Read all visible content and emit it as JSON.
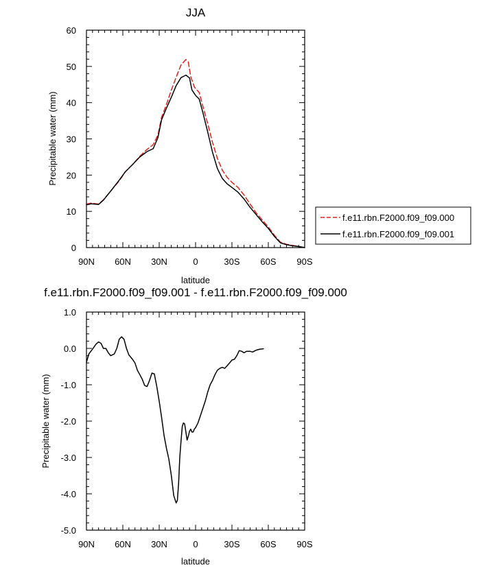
{
  "chart_data": [
    {
      "type": "line",
      "title": "JJA",
      "xlabel": "latitude",
      "ylabel": "Precipitable water (mm)",
      "xlim": [
        90,
        -90
      ],
      "ylim": [
        0,
        60
      ],
      "x_ticks": [
        {
          "value": 90,
          "label": "90N"
        },
        {
          "value": 60,
          "label": "60N"
        },
        {
          "value": 30,
          "label": "30N"
        },
        {
          "value": 0,
          "label": "0"
        },
        {
          "value": -30,
          "label": "30S"
        },
        {
          "value": -60,
          "label": "60S"
        },
        {
          "value": -90,
          "label": "90S"
        }
      ],
      "y_ticks": [
        {
          "value": 0,
          "label": "0"
        },
        {
          "value": 10,
          "label": "10"
        },
        {
          "value": 20,
          "label": "20"
        },
        {
          "value": 30,
          "label": "30"
        },
        {
          "value": 40,
          "label": "40"
        },
        {
          "value": 50,
          "label": "50"
        },
        {
          "value": 60,
          "label": "60"
        }
      ],
      "legend_position": "right",
      "series": [
        {
          "name": "f.e11.rbn.F2000.f09_f09.000",
          "color": "#e0201b",
          "dash": "dashed",
          "points": [
            [
              90,
              12.0
            ],
            [
              86,
              12.3
            ],
            [
              80,
              12.0
            ],
            [
              76,
              13.2
            ],
            [
              70,
              15.6
            ],
            [
              63,
              18.4
            ],
            [
              58,
              20.9
            ],
            [
              52,
              22.9
            ],
            [
              46,
              25.2
            ],
            [
              40,
              27.1
            ],
            [
              35,
              28.4
            ],
            [
              31,
              31.1
            ],
            [
              28,
              36.0
            ],
            [
              24,
              39.5
            ],
            [
              20,
              43.5
            ],
            [
              16,
              47.0
            ],
            [
              12,
              50.4
            ],
            [
              8,
              51.9
            ],
            [
              6,
              51.2
            ],
            [
              4,
              47.2
            ],
            [
              1,
              44.3
            ],
            [
              -3,
              42.8
            ],
            [
              -6,
              39.0
            ],
            [
              -10,
              34.2
            ],
            [
              -14,
              29.0
            ],
            [
              -18,
              24.6
            ],
            [
              -22,
              21.4
            ],
            [
              -26,
              19.4
            ],
            [
              -30,
              18.0
            ],
            [
              -35,
              16.6
            ],
            [
              -40,
              14.5
            ],
            [
              -45,
              12.0
            ],
            [
              -50,
              9.6
            ],
            [
              -55,
              7.6
            ],
            [
              -60,
              5.7
            ],
            [
              -65,
              3.4
            ],
            [
              -70,
              1.5
            ],
            [
              -75,
              0.9
            ],
            [
              -80,
              0.6
            ],
            [
              -85,
              0.3
            ],
            [
              -90,
              0.0
            ]
          ]
        },
        {
          "name": "f.e11.rbn.F2000.f09_f09.001",
          "color": "#000000",
          "dash": "solid",
          "points": [
            [
              90,
              11.8
            ],
            [
              86,
              12.1
            ],
            [
              80,
              11.9
            ],
            [
              76,
              13.1
            ],
            [
              70,
              15.6
            ],
            [
              63,
              18.6
            ],
            [
              58,
              20.9
            ],
            [
              52,
              22.9
            ],
            [
              46,
              25.0
            ],
            [
              40,
              26.5
            ],
            [
              35,
              27.3
            ],
            [
              31,
              30.4
            ],
            [
              28,
              35.3
            ],
            [
              24,
              38.5
            ],
            [
              20,
              41.5
            ],
            [
              16,
              44.7
            ],
            [
              12,
              46.9
            ],
            [
              8,
              47.6
            ],
            [
              5,
              46.8
            ],
            [
              3,
              43.5
            ],
            [
              0,
              42.0
            ],
            [
              -3,
              41.0
            ],
            [
              -6,
              37.3
            ],
            [
              -10,
              31.9
            ],
            [
              -14,
              26.3
            ],
            [
              -18,
              21.8
            ],
            [
              -22,
              19.1
            ],
            [
              -26,
              17.6
            ],
            [
              -30,
              16.6
            ],
            [
              -35,
              15.3
            ],
            [
              -40,
              13.4
            ],
            [
              -45,
              11.1
            ],
            [
              -50,
              9.1
            ],
            [
              -55,
              7.1
            ],
            [
              -60,
              5.3
            ],
            [
              -65,
              3.1
            ],
            [
              -70,
              1.3
            ],
            [
              -75,
              0.8
            ],
            [
              -80,
              0.5
            ],
            [
              -85,
              0.3
            ],
            [
              -90,
              0.0
            ]
          ]
        }
      ]
    },
    {
      "type": "line",
      "title": "f.e11.rbn.F2000.f09_f09.001 - f.e11.rbn.F2000.f09_f09.000",
      "xlabel": "latitude",
      "ylabel": "Precipitable water (mm)",
      "xlim": [
        90,
        -90
      ],
      "ylim": [
        -5,
        1
      ],
      "x_ticks": [
        {
          "value": 90,
          "label": "90N"
        },
        {
          "value": 60,
          "label": "60N"
        },
        {
          "value": 30,
          "label": "30N"
        },
        {
          "value": 0,
          "label": "0"
        },
        {
          "value": -30,
          "label": "30S"
        },
        {
          "value": -60,
          "label": "60S"
        },
        {
          "value": -90,
          "label": "90S"
        }
      ],
      "y_ticks": [
        {
          "value": 1,
          "label": "1.0"
        },
        {
          "value": 0,
          "label": "0.0"
        },
        {
          "value": -1,
          "label": "-1.0"
        },
        {
          "value": -2,
          "label": "-2.0"
        },
        {
          "value": -3,
          "label": "-3.0"
        },
        {
          "value": -4,
          "label": "-4.0"
        },
        {
          "value": -5,
          "label": "-5.0"
        }
      ],
      "series": [
        {
          "name": "",
          "color": "#000000",
          "dash": "solid",
          "points": [
            [
              90,
              -0.38
            ],
            [
              88,
              -0.15
            ],
            [
              85,
              -0.02
            ],
            [
              82,
              0.12
            ],
            [
              80,
              0.18
            ],
            [
              78,
              0.14
            ],
            [
              76,
              0.0
            ],
            [
              74,
              0.0
            ],
            [
              72,
              -0.12
            ],
            [
              70,
              -0.2
            ],
            [
              67,
              -0.15
            ],
            [
              65,
              0.0
            ],
            [
              63,
              0.25
            ],
            [
              61,
              0.32
            ],
            [
              59,
              0.25
            ],
            [
              57,
              0.0
            ],
            [
              55,
              -0.18
            ],
            [
              52,
              -0.3
            ],
            [
              50,
              -0.4
            ],
            [
              48,
              -0.6
            ],
            [
              46,
              -0.72
            ],
            [
              44,
              -0.85
            ],
            [
              42,
              -1.02
            ],
            [
              40,
              -1.05
            ],
            [
              38,
              -0.88
            ],
            [
              36,
              -0.68
            ],
            [
              34,
              -0.7
            ],
            [
              32,
              -1.05
            ],
            [
              30,
              -1.45
            ],
            [
              28,
              -1.9
            ],
            [
              26,
              -2.4
            ],
            [
              24,
              -2.75
            ],
            [
              22,
              -3.05
            ],
            [
              20,
              -3.5
            ],
            [
              18,
              -4.05
            ],
            [
              16,
              -4.25
            ],
            [
              15,
              -4.18
            ],
            [
              14,
              -3.7
            ],
            [
              13,
              -3.0
            ],
            [
              12,
              -2.55
            ],
            [
              11,
              -2.15
            ],
            [
              10,
              -2.05
            ],
            [
              9,
              -2.08
            ],
            [
              8,
              -2.3
            ],
            [
              7,
              -2.52
            ],
            [
              6,
              -2.42
            ],
            [
              5,
              -2.28
            ],
            [
              4,
              -2.22
            ],
            [
              3,
              -2.3
            ],
            [
              2,
              -2.3
            ],
            [
              1,
              -2.22
            ],
            [
              0,
              -2.18
            ],
            [
              -2,
              -2.05
            ],
            [
              -4,
              -1.85
            ],
            [
              -6,
              -1.65
            ],
            [
              -8,
              -1.45
            ],
            [
              -10,
              -1.2
            ],
            [
              -12,
              -1.0
            ],
            [
              -14,
              -0.88
            ],
            [
              -16,
              -0.72
            ],
            [
              -18,
              -0.6
            ],
            [
              -20,
              -0.55
            ],
            [
              -22,
              -0.52
            ],
            [
              -24,
              -0.55
            ],
            [
              -26,
              -0.48
            ],
            [
              -28,
              -0.4
            ],
            [
              -30,
              -0.32
            ],
            [
              -32,
              -0.3
            ],
            [
              -34,
              -0.2
            ],
            [
              -36,
              -0.06
            ],
            [
              -38,
              -0.08
            ],
            [
              -40,
              -0.12
            ],
            [
              -42,
              -0.08
            ],
            [
              -45,
              -0.08
            ],
            [
              -47,
              -0.1
            ],
            [
              -50,
              -0.05
            ],
            [
              -53,
              -0.02
            ],
            [
              -56,
              -0.01
            ]
          ]
        }
      ]
    }
  ]
}
